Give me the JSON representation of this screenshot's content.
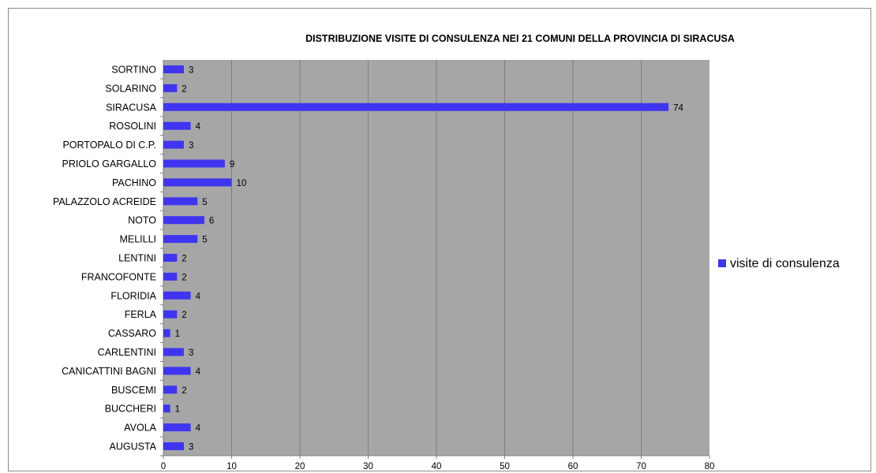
{
  "chart_data": {
    "type": "bar",
    "orientation": "horizontal",
    "title": "DISTRIBUZIONE VISITE  DI CONSULENZA NEI 21 COMUNI DELLA PROVINCIA DI SIRACUSA",
    "categories": [
      "AUGUSTA",
      "AVOLA",
      "BUCCHERI",
      "BUSCEMI",
      "CANICATTINI BAGNI",
      "CARLENTINI",
      "CASSARO",
      "FERLA",
      "FLORIDIA",
      "FRANCOFONTE",
      "LENTINI",
      "MELILLI",
      "NOTO",
      "PALAZZOLO ACREIDE",
      "PACHINO",
      "PRIOLO GARGALLO",
      "PORTOPALO DI C.P.",
      "ROSOLINI",
      "SIRACUSA",
      "SOLARINO",
      "SORTINO"
    ],
    "series": [
      {
        "name": "visite di consulenza",
        "values": [
          3,
          4,
          1,
          2,
          4,
          3,
          1,
          2,
          4,
          2,
          2,
          5,
          6,
          5,
          10,
          9,
          3,
          4,
          74,
          2,
          3
        ]
      }
    ],
    "xlim": [
      0,
      80
    ],
    "xticks": [
      0,
      10,
      20,
      30,
      40,
      50,
      60,
      70,
      80
    ],
    "grid": true,
    "legend_position": "right",
    "colors": {
      "bar": "#3f35f0",
      "plot_background": "#a6a6a6",
      "gridline": "#7f7f7f"
    }
  }
}
